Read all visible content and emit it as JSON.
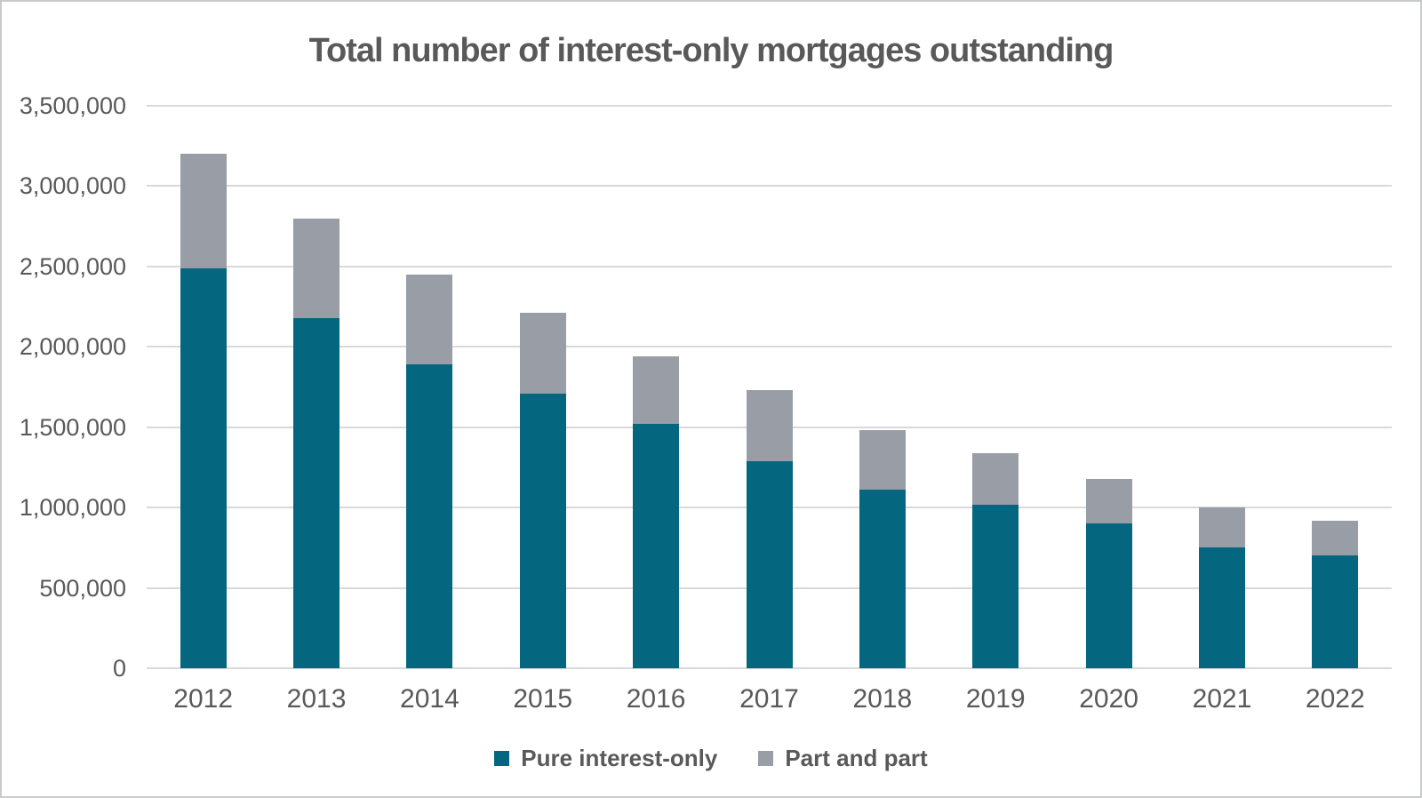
{
  "frame": {
    "background_color": "#ffffff",
    "border_color": "#c9cacb"
  },
  "chart_data": {
    "type": "bar",
    "stacked": true,
    "title": "Total number of interest-only mortgages outstanding",
    "categories": [
      "2012",
      "2013",
      "2014",
      "2015",
      "2016",
      "2017",
      "2018",
      "2019",
      "2020",
      "2021",
      "2022"
    ],
    "series": [
      {
        "name": "Pure interest-only",
        "color": "#04677f",
        "values": [
          2490000,
          2180000,
          1890000,
          1710000,
          1520000,
          1290000,
          1110000,
          1020000,
          900000,
          750000,
          700000
        ]
      },
      {
        "name": "Part and part",
        "color": "#989da6",
        "values": [
          710000,
          620000,
          560000,
          500000,
          420000,
          440000,
          370000,
          320000,
          280000,
          250000,
          220000
        ]
      }
    ],
    "totals": [
      3200000,
      2800000,
      2450000,
      2210000,
      1940000,
      1730000,
      1480000,
      1340000,
      1180000,
      1000000,
      920000
    ],
    "xlabel": "",
    "ylabel": "",
    "y_axis": {
      "min": 0,
      "max": 3500000,
      "tick_step": 500000,
      "tick_labels": [
        "0",
        "500,000",
        "1,000,000",
        "1,500,000",
        "2,000,000",
        "2,500,000",
        "3,000,000",
        "3,500,000"
      ]
    },
    "grid": true,
    "gridline_color": "#d9d9d9",
    "text_color": "#595959",
    "legend": {
      "position": "bottom",
      "items": [
        "Pure interest-only",
        "Part and part"
      ]
    }
  }
}
